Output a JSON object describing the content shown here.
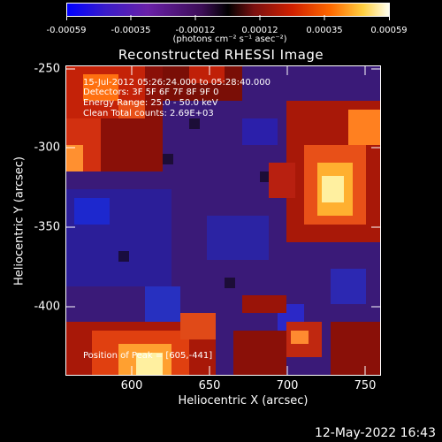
{
  "colorbar": {
    "ticks": [
      "-0.00059",
      "-0.00035",
      "-0.00012",
      "0.00012",
      "0.00035",
      "0.00059"
    ],
    "unit": "(photons cm⁻² s⁻¹ asec⁻²)"
  },
  "title": "Reconstructed RHESSI Image",
  "info": {
    "line1": "15-Jul-2012 05:26:24.000 to 05:28:40.000",
    "line2": "Detectors: 3F 5F 6F 7F 8F 9F 0",
    "line3": "Energy Range: 25.0 - 50.0 keV",
    "line4": "Clean     Total counts: 2.69E+03",
    "peak": "Position of Peak = [605,-441]"
  },
  "axes": {
    "xlabel": "Heliocentric X (arcsec)",
    "ylabel": "Heliocentric Y (arcsec)",
    "xticks": [
      "600",
      "650",
      "700",
      "750"
    ],
    "yticks": [
      "-250",
      "-300",
      "-350",
      "-400"
    ]
  },
  "footer_date": "12-May-2022 16:43"
}
